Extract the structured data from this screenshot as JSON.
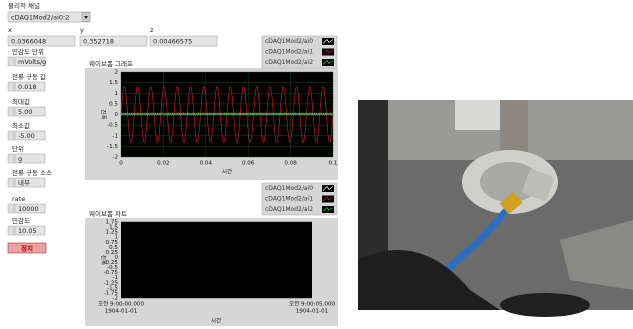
{
  "channel": {
    "label": "물리적 채널",
    "value": "cDAQ1Mod2/ai0:2"
  },
  "readouts": [
    {
      "label": "x",
      "value": "0.0366048"
    },
    {
      "label": "y",
      "value": "0.352718"
    },
    {
      "label": "z",
      "value": "0.00466575"
    }
  ],
  "controls": [
    {
      "label": "민감도 단위",
      "value": "mVolts/g"
    },
    {
      "label": "전류 구동 값",
      "value": "0.018"
    },
    {
      "label": "최대값",
      "value": "5.00"
    },
    {
      "label": "최소값",
      "value": "-5.00"
    },
    {
      "label": "단위",
      "value": "g"
    },
    {
      "label": "전류 구동 소스",
      "value": "내부"
    },
    {
      "label": "rate",
      "value": "10000"
    },
    {
      "label": "민감도",
      "value": "10.05"
    }
  ],
  "stop_button": "정지",
  "graph": {
    "title": "웨이브폼 그래프",
    "y_label": "진폭",
    "x_label": "시간",
    "yticks": [
      "2",
      "1.5",
      "1",
      "0.5",
      "0",
      "-0.5",
      "-1",
      "-1.5",
      "-2"
    ],
    "xticks": [
      "0",
      "0.02",
      "0.04",
      "0.06",
      "0.08",
      "0.1"
    ],
    "legend": [
      "cDAQ1Mod2/ai0",
      "cDAQ1Mod2/ai1",
      "cDAQ1Mod2/ai2"
    ]
  },
  "chart": {
    "title": "웨이브폼 차트",
    "y_label": "진폭",
    "x_label": "시간",
    "yticks": [
      "1.75",
      "1.5",
      "1.25",
      "1",
      "0.75",
      "0.5",
      "0.25",
      "0",
      "-0.25",
      "-0.5",
      "-0.75",
      "-1",
      "-1.25",
      "-1.5",
      "-1.75",
      "-2"
    ],
    "xticks": [
      {
        "time": "오전 9:00:00.000",
        "date": "1904-01-01"
      },
      {
        "time": "오전 9:00:05.000",
        "date": "1904-01-01"
      }
    ],
    "legend": [
      "cDAQ1Mod2/ai0",
      "cDAQ1Mod2/ai1",
      "cDAQ1Mod2/ai2"
    ]
  }
}
